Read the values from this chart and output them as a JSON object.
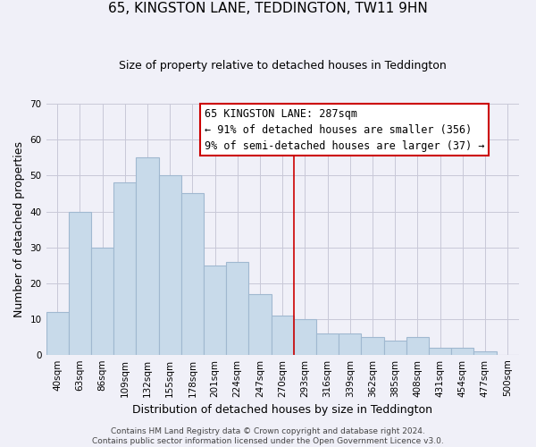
{
  "title": "65, KINGSTON LANE, TEDDINGTON, TW11 9HN",
  "subtitle": "Size of property relative to detached houses in Teddington",
  "xlabel": "Distribution of detached houses by size in Teddington",
  "ylabel": "Number of detached properties",
  "bar_labels": [
    "40sqm",
    "63sqm",
    "86sqm",
    "109sqm",
    "132sqm",
    "155sqm",
    "178sqm",
    "201sqm",
    "224sqm",
    "247sqm",
    "270sqm",
    "293sqm",
    "316sqm",
    "339sqm",
    "362sqm",
    "385sqm",
    "408sqm",
    "431sqm",
    "454sqm",
    "477sqm",
    "500sqm"
  ],
  "bar_heights": [
    12,
    40,
    30,
    48,
    55,
    50,
    45,
    25,
    26,
    17,
    11,
    10,
    6,
    6,
    5,
    4,
    5,
    2,
    2,
    1,
    0
  ],
  "bar_color": "#c8daea",
  "bar_edge_color": "#a0b8d0",
  "bar_edge_width": 0.8,
  "vline_x": 10.5,
  "vline_color": "#cc0000",
  "ylim": [
    0,
    70
  ],
  "yticks": [
    0,
    10,
    20,
    30,
    40,
    50,
    60,
    70
  ],
  "annotation_title": "65 KINGSTON LANE: 287sqm",
  "annotation_line1": "← 91% of detached houses are smaller (356)",
  "annotation_line2": "9% of semi-detached houses are larger (37) →",
  "annotation_box_color": "#ffffff",
  "annotation_box_edge": "#cc0000",
  "footer_line1": "Contains HM Land Registry data © Crown copyright and database right 2024.",
  "footer_line2": "Contains public sector information licensed under the Open Government Licence v3.0.",
  "background_color": "#f0f0f8",
  "grid_color": "#c8c8d8",
  "title_fontsize": 11,
  "subtitle_fontsize": 9,
  "ylabel_fontsize": 9,
  "xlabel_fontsize": 9,
  "annotation_fontsize": 8.5,
  "footer_fontsize": 6.5,
  "tick_fontsize": 7.5
}
